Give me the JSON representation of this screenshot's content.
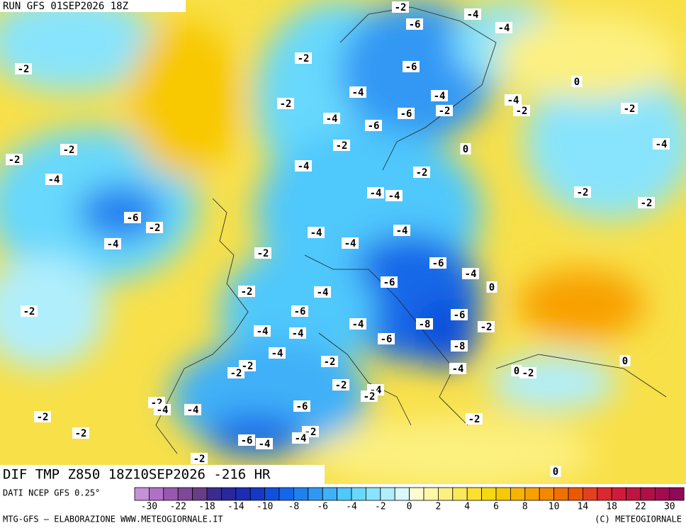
{
  "header": {
    "run": "RUN GFS 01SEP2026 18Z"
  },
  "footer": {
    "field": "DIF TMP Z850 18Z10SEP2026 -216 HR",
    "source": "DATI NCEP GFS 0.25°",
    "credit": "MTG-GFS — ELABORAZIONE WWW.METEOGIORNALE.IT",
    "copyright": "(C) METEOGIORNALE"
  },
  "map_labels": [
    -2,
    -4,
    -6,
    -4,
    -2,
    -2,
    -6,
    0,
    -4,
    -4,
    -4,
    -2,
    -6,
    -2,
    -2,
    -2,
    -4,
    -6,
    -2,
    0,
    -2,
    -4,
    -2,
    -4,
    -2,
    -4,
    -4,
    -4,
    -2,
    -2,
    -6,
    -2,
    -4,
    -4,
    -4,
    -4,
    -2,
    -6,
    -4,
    -6,
    0,
    -2,
    -4,
    -2,
    -6,
    -6,
    -2,
    -8,
    -4,
    -4,
    -4,
    -6,
    -8,
    -4,
    -2,
    0,
    -2,
    -2,
    -4,
    0,
    -2,
    -2,
    -4,
    -2,
    -2,
    -4,
    -4,
    -6,
    -2,
    -2,
    -2,
    -2,
    -6,
    -4,
    -4,
    -2,
    0
  ],
  "colorbar": {
    "colors": [
      "#c890d8",
      "#b070c8",
      "#9858b0",
      "#804898",
      "#683c88",
      "#3a2c8c",
      "#28289c",
      "#1c2cb4",
      "#1438c8",
      "#1050dc",
      "#1468e8",
      "#2080f0",
      "#3098f4",
      "#40b0f8",
      "#50c8fc",
      "#68d8fc",
      "#88e4fc",
      "#b0eefc",
      "#d8f8fc",
      "#fcfcd0",
      "#fcf8a8",
      "#fcf080",
      "#fce858",
      "#fce030",
      "#f8d810",
      "#f8c800",
      "#f8b400",
      "#f8a000",
      "#f48800",
      "#f07000",
      "#ec5800",
      "#e44020",
      "#dc2830",
      "#d01c38",
      "#c01440",
      "#b01048",
      "#a00c50",
      "#900858"
    ],
    "ticks": [
      -30,
      -22,
      -18,
      -14,
      -10,
      -8,
      -6,
      -4,
      -2,
      0,
      2,
      4,
      6,
      8,
      10,
      14,
      18,
      22,
      30
    ]
  }
}
